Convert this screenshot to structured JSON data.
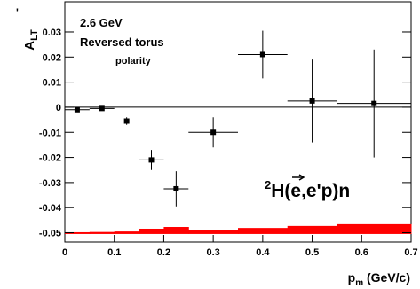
{
  "chart_data": {
    "type": "scatter",
    "annotations": [
      "2.6 GeV",
      "Reversed torus",
      "polarity"
    ],
    "reaction": {
      "superscript": "2",
      "pre": "H(",
      "vector": "e",
      "post": ",e'p)n"
    },
    "ylabel": {
      "main": "A",
      "sub": "LT",
      "prime": "'"
    },
    "xlabel": {
      "main": "p",
      "sub": "m",
      "unit": " (GeV/c)"
    },
    "xlim": [
      0,
      0.7
    ],
    "ylim": [
      -0.0537,
      0.042
    ],
    "xticks": [
      0,
      0.1,
      0.2,
      0.3,
      0.4,
      0.5,
      0.6,
      0.7
    ],
    "yticks": [
      -0.05,
      -0.04,
      -0.03,
      -0.02,
      -0.01,
      0,
      0.01,
      0.02,
      0.03
    ],
    "series": [
      {
        "color": "#000000",
        "x": [
          0.025,
          0.075,
          0.125,
          0.175,
          0.225,
          0.3,
          0.4,
          0.5,
          0.625
        ],
        "xerr": [
          0.025,
          0.025,
          0.025,
          0.025,
          0.025,
          0.05,
          0.05,
          0.05,
          0.075
        ],
        "y": [
          -0.001,
          -0.0005,
          -0.0055,
          -0.021,
          -0.0325,
          -0.01,
          0.021,
          0.0025,
          0.0015
        ],
        "yerr": [
          0.0005,
          0.0005,
          0.0015,
          0.004,
          0.007,
          0.006,
          0.0095,
          0.0165,
          0.0215
        ]
      }
    ],
    "systematics": {
      "color": "#ff0000",
      "bins": [
        0,
        0.05,
        0.1,
        0.15,
        0.2,
        0.25,
        0.35,
        0.45,
        0.55,
        0.7
      ],
      "low": [
        -0.0505,
        -0.0505,
        -0.0505,
        -0.0505,
        -0.0505,
        -0.0505,
        -0.0505,
        -0.0505,
        -0.0505
      ],
      "high": [
        -0.0498,
        -0.0497,
        -0.0495,
        -0.0484,
        -0.0477,
        -0.0488,
        -0.0481,
        -0.0473,
        -0.0466
      ]
    }
  }
}
